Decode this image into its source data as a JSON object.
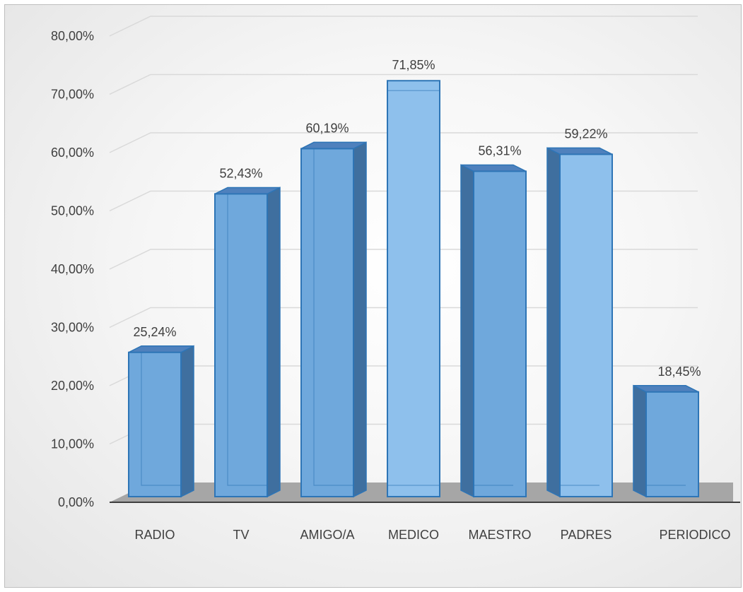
{
  "chart_data": {
    "type": "bar",
    "title": "",
    "xlabel": "",
    "ylabel": "",
    "categories": [
      "RADIO",
      "TV",
      "AMIGO/A",
      "MEDICO",
      "MAESTRO",
      "PADRES",
      "PERIODICO"
    ],
    "values": [
      0.2524,
      0.5243,
      0.6019,
      0.7185,
      0.5631,
      0.5922,
      0.1845
    ],
    "data_labels": [
      "25,24%",
      "52,43%",
      "60,19%",
      "71,85%",
      "56,31%",
      "59,22%",
      "18,45%"
    ],
    "y_ticks": [
      "0,00%",
      "10,00%",
      "20,00%",
      "30,00%",
      "40,00%",
      "50,00%",
      "60,00%",
      "70,00%",
      "80,00%"
    ],
    "ylim": [
      0,
      0.8
    ],
    "grid": true,
    "style": "3d-column",
    "colors": {
      "bar_front": "#6fa8dc",
      "bar_front_light": "#8ec0ec",
      "bar_side": "#3f6f9f",
      "bar_top": "#4f81bd",
      "bar_edge": "#2e75b6",
      "floor": "#a6a6a6",
      "grid": "#d9d9d9",
      "text": "#404040"
    }
  }
}
